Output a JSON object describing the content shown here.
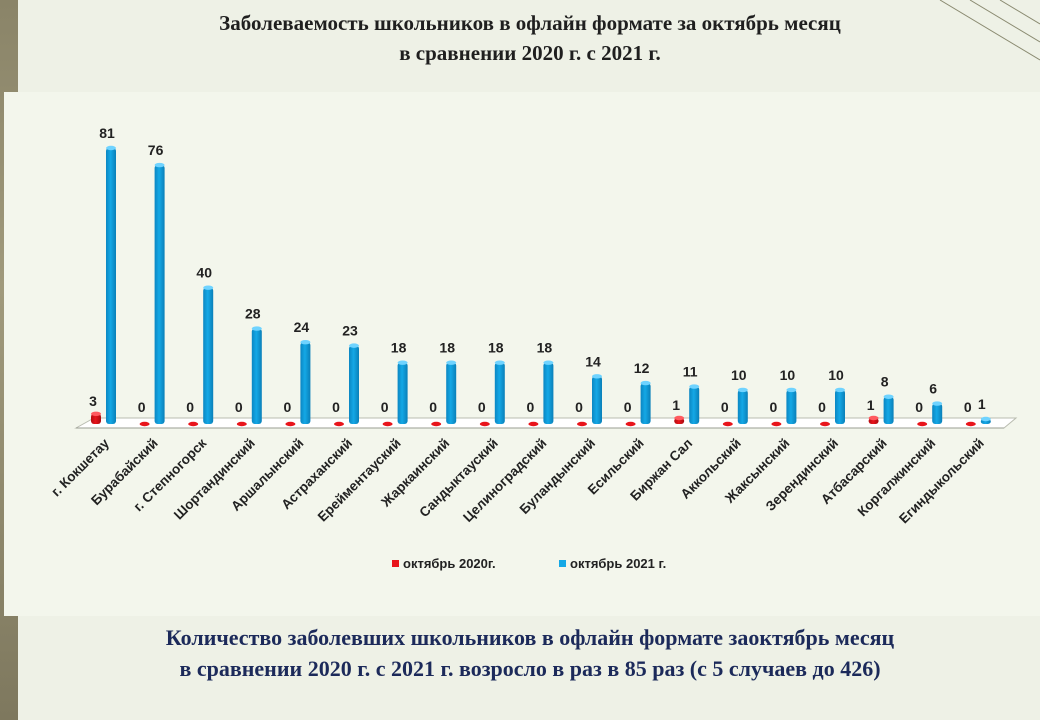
{
  "title_line1": "Заболеваемость школьников в офлайн формате за октябрь месяц",
  "title_line2": "в сравнении 2020 г. с 2021 г.",
  "footer_line1": "Количество заболевших школьников в офлайн формате заоктябрь месяц",
  "footer_line2": "в сравнении 2020 г. с 2021 г. возросло в раз в 85 раз (с 5 случаев  до 426)",
  "colors": {
    "series_2020": "#e8141b",
    "series_2021": "#14a8e6",
    "background": "#eef1e6"
  },
  "chart_data": {
    "type": "bar",
    "categories": [
      "г. Кокшетау",
      "Бурабайский",
      "г. Степногорск",
      "Шортандинский",
      "Аршалынский",
      "Астраханский",
      "Ерейментауский",
      "Жаркаинский",
      "Сандыктауский",
      "Целиноградский",
      "Буландынский",
      "Есильский",
      "Биржан Сал",
      "Аккольский",
      "Жаксынский",
      "Зерендинский",
      "Атбасарский",
      "Коргалжинский",
      "Егиндыкольский"
    ],
    "series": [
      {
        "name": "октябрь 2020г.",
        "values": [
          3,
          0,
          0,
          0,
          0,
          0,
          0,
          0,
          0,
          0,
          0,
          0,
          1,
          0,
          0,
          0,
          1,
          0,
          0
        ]
      },
      {
        "name": "октябрь 2021 г.",
        "values": [
          81,
          76,
          40,
          28,
          24,
          23,
          18,
          18,
          18,
          18,
          14,
          12,
          11,
          10,
          10,
          10,
          8,
          6,
          1
        ]
      }
    ],
    "ylim": [
      0,
      81
    ],
    "legend_position": "bottom",
    "grid": false
  }
}
